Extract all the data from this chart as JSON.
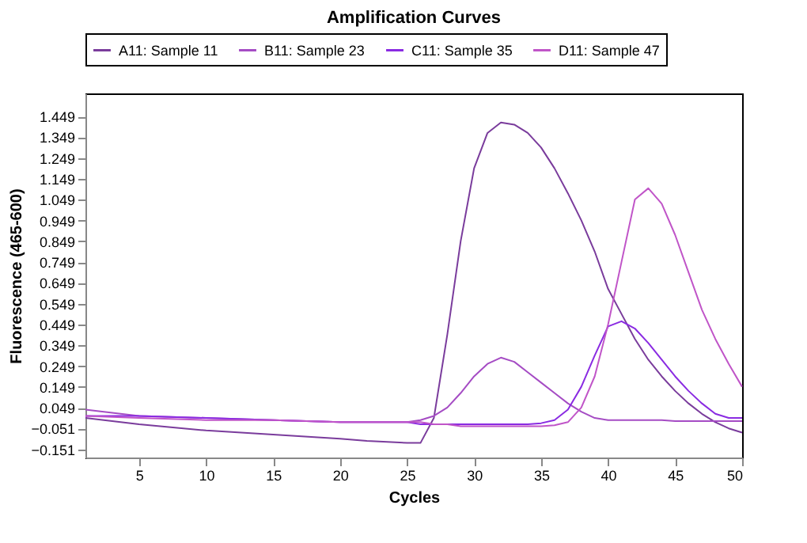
{
  "chart_data": {
    "type": "line",
    "title": "Amplification Curves",
    "xlabel": "Cycles",
    "ylabel": "Fluorescence (465-600)",
    "xlim": [
      1,
      50
    ],
    "xticks": [
      5,
      10,
      15,
      20,
      25,
      30,
      35,
      40,
      45,
      50
    ],
    "ylim": [
      -0.19,
      1.56
    ],
    "yticks": [
      -0.151,
      -0.051,
      0.049,
      0.149,
      0.249,
      0.349,
      0.449,
      0.549,
      0.649,
      0.749,
      0.849,
      0.949,
      1.049,
      1.149,
      1.249,
      1.349,
      1.449
    ],
    "x": [
      1,
      5,
      10,
      15,
      20,
      22,
      25,
      26,
      27,
      28,
      29,
      30,
      31,
      32,
      33,
      34,
      35,
      36,
      37,
      38,
      39,
      40,
      41,
      42,
      43,
      44,
      45,
      46,
      47,
      48,
      49,
      50
    ],
    "series": [
      {
        "name": "A11: Sample 11",
        "color": "#7a3c9c",
        "values": [
          0.0,
          -0.03,
          -0.06,
          -0.08,
          -0.1,
          -0.11,
          -0.12,
          -0.12,
          0.0,
          0.4,
          0.85,
          1.2,
          1.37,
          1.42,
          1.41,
          1.37,
          1.3,
          1.2,
          1.08,
          0.95,
          0.8,
          0.62,
          0.5,
          0.38,
          0.28,
          0.2,
          0.13,
          0.07,
          0.02,
          -0.02,
          -0.05,
          -0.07
        ]
      },
      {
        "name": "B11: Sample 23",
        "color": "#a54cc4",
        "values": [
          0.04,
          0.01,
          0.0,
          -0.01,
          -0.02,
          -0.02,
          -0.02,
          -0.01,
          0.01,
          0.05,
          0.12,
          0.2,
          0.26,
          0.29,
          0.27,
          0.22,
          0.17,
          0.12,
          0.07,
          0.03,
          0.0,
          -0.01,
          -0.01,
          -0.01,
          -0.01,
          -0.01,
          -0.015,
          -0.015,
          -0.015,
          -0.015,
          -0.015,
          -0.015
        ]
      },
      {
        "name": "C11: Sample 35",
        "color": "#8a2be2",
        "values": [
          0.01,
          0.01,
          0.0,
          -0.01,
          -0.02,
          -0.02,
          -0.02,
          -0.03,
          -0.03,
          -0.03,
          -0.03,
          -0.03,
          -0.03,
          -0.03,
          -0.03,
          -0.03,
          -0.025,
          -0.01,
          0.04,
          0.15,
          0.3,
          0.44,
          0.465,
          0.43,
          0.36,
          0.28,
          0.2,
          0.13,
          0.07,
          0.02,
          0.0,
          0.0
        ]
      },
      {
        "name": "D11: Sample 47",
        "color": "#c055c8",
        "values": [
          0.01,
          0.0,
          -0.01,
          -0.01,
          -0.02,
          -0.02,
          -0.02,
          -0.02,
          -0.03,
          -0.03,
          -0.04,
          -0.04,
          -0.04,
          -0.04,
          -0.04,
          -0.04,
          -0.04,
          -0.035,
          -0.02,
          0.05,
          0.2,
          0.45,
          0.75,
          1.05,
          1.104,
          1.03,
          0.88,
          0.7,
          0.52,
          0.38,
          0.26,
          0.15
        ]
      }
    ],
    "legend": "top",
    "grid": false
  }
}
